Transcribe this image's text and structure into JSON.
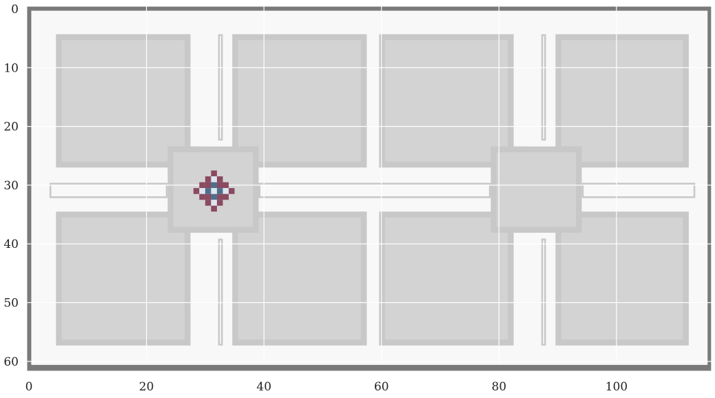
{
  "figure": {
    "x_ticks": [
      "0",
      "20",
      "40",
      "60",
      "80",
      "100"
    ],
    "y_ticks": [
      "0",
      "10",
      "20",
      "30",
      "40",
      "50",
      "60"
    ]
  },
  "map": {
    "colors": {
      "border": "#7a7a7a",
      "floor": "#f8f8f8",
      "building": "#d3d3d3",
      "building_edge": "#c8c8c8",
      "grid": "#ffffff",
      "agent_outer": "#8a4a60",
      "agent_inner": "#4e6f8c",
      "agent_light": "#dde6ee"
    }
  }
}
